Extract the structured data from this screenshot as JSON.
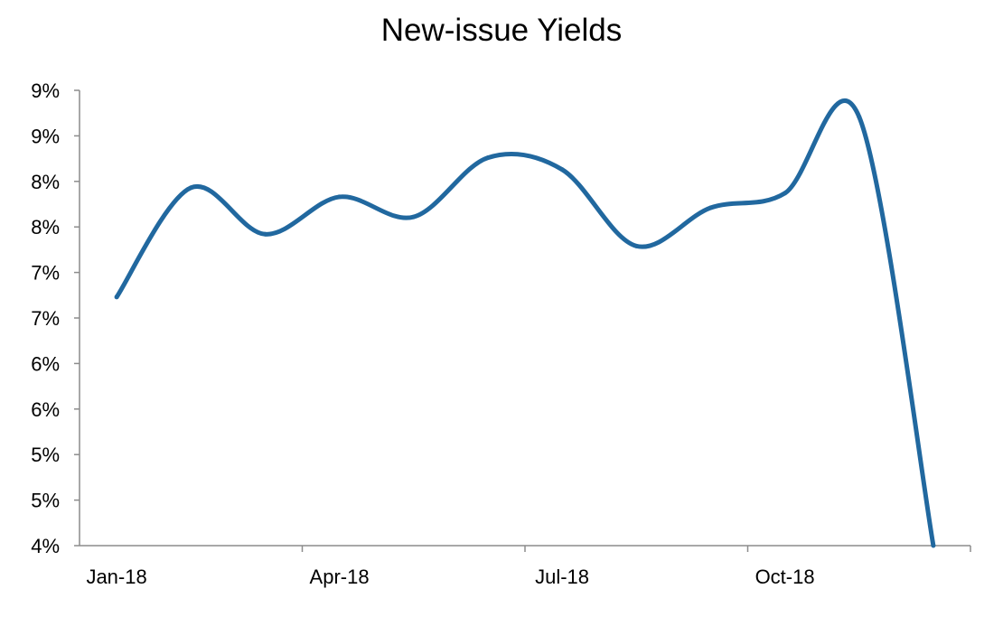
{
  "chart_data": {
    "type": "line",
    "title": "New-issue Yields",
    "xlabel": "",
    "ylabel": "",
    "x_tick_labels": [
      "Jan-18",
      "Apr-18",
      "Jul-18",
      "Oct-18"
    ],
    "y_tick_labels": [
      "4%",
      "5%",
      "5%",
      "6%",
      "6%",
      "7%",
      "7%",
      "8%",
      "8%",
      "9%",
      "9%"
    ],
    "ylim": [
      4.0,
      9.0
    ],
    "grid": false,
    "legend": "none",
    "series": [
      {
        "color": "#21689f",
        "x": [
          "Jan-18",
          "Feb-18",
          "Mar-18",
          "Apr-18",
          "May-18",
          "Jun-18",
          "Jul-18",
          "Aug-18",
          "Sep-18",
          "Oct-18",
          "Nov-18",
          "Dec-18"
        ],
        "values": [
          6.73,
          7.93,
          7.42,
          7.83,
          7.61,
          8.26,
          8.13,
          7.29,
          7.71,
          7.87,
          8.71,
          4.0
        ]
      }
    ]
  }
}
